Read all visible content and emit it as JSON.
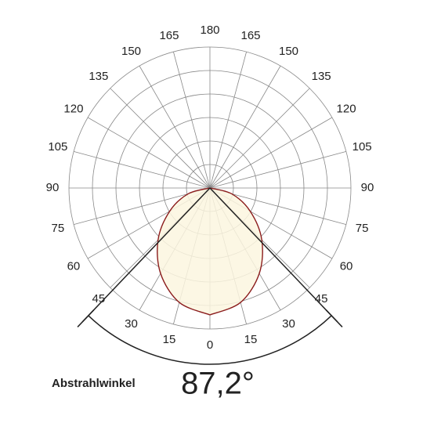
{
  "chart_data": {
    "type": "polar",
    "angle_ticks": [
      0,
      15,
      30,
      45,
      60,
      75,
      90,
      105,
      120,
      135,
      150,
      165,
      180
    ],
    "angles": [
      0,
      15,
      30,
      45,
      60,
      75,
      90
    ],
    "values": [
      90,
      84,
      70,
      52,
      33,
      16,
      0
    ],
    "rlim": [
      0,
      100
    ],
    "color": "#8b1c1c",
    "fill": "#fbf6df",
    "beam_label": "Abstrahlwinkel",
    "beam_angle": [
      87.2
    ],
    "beam_angle_labels": [
      "87,2°"
    ]
  }
}
